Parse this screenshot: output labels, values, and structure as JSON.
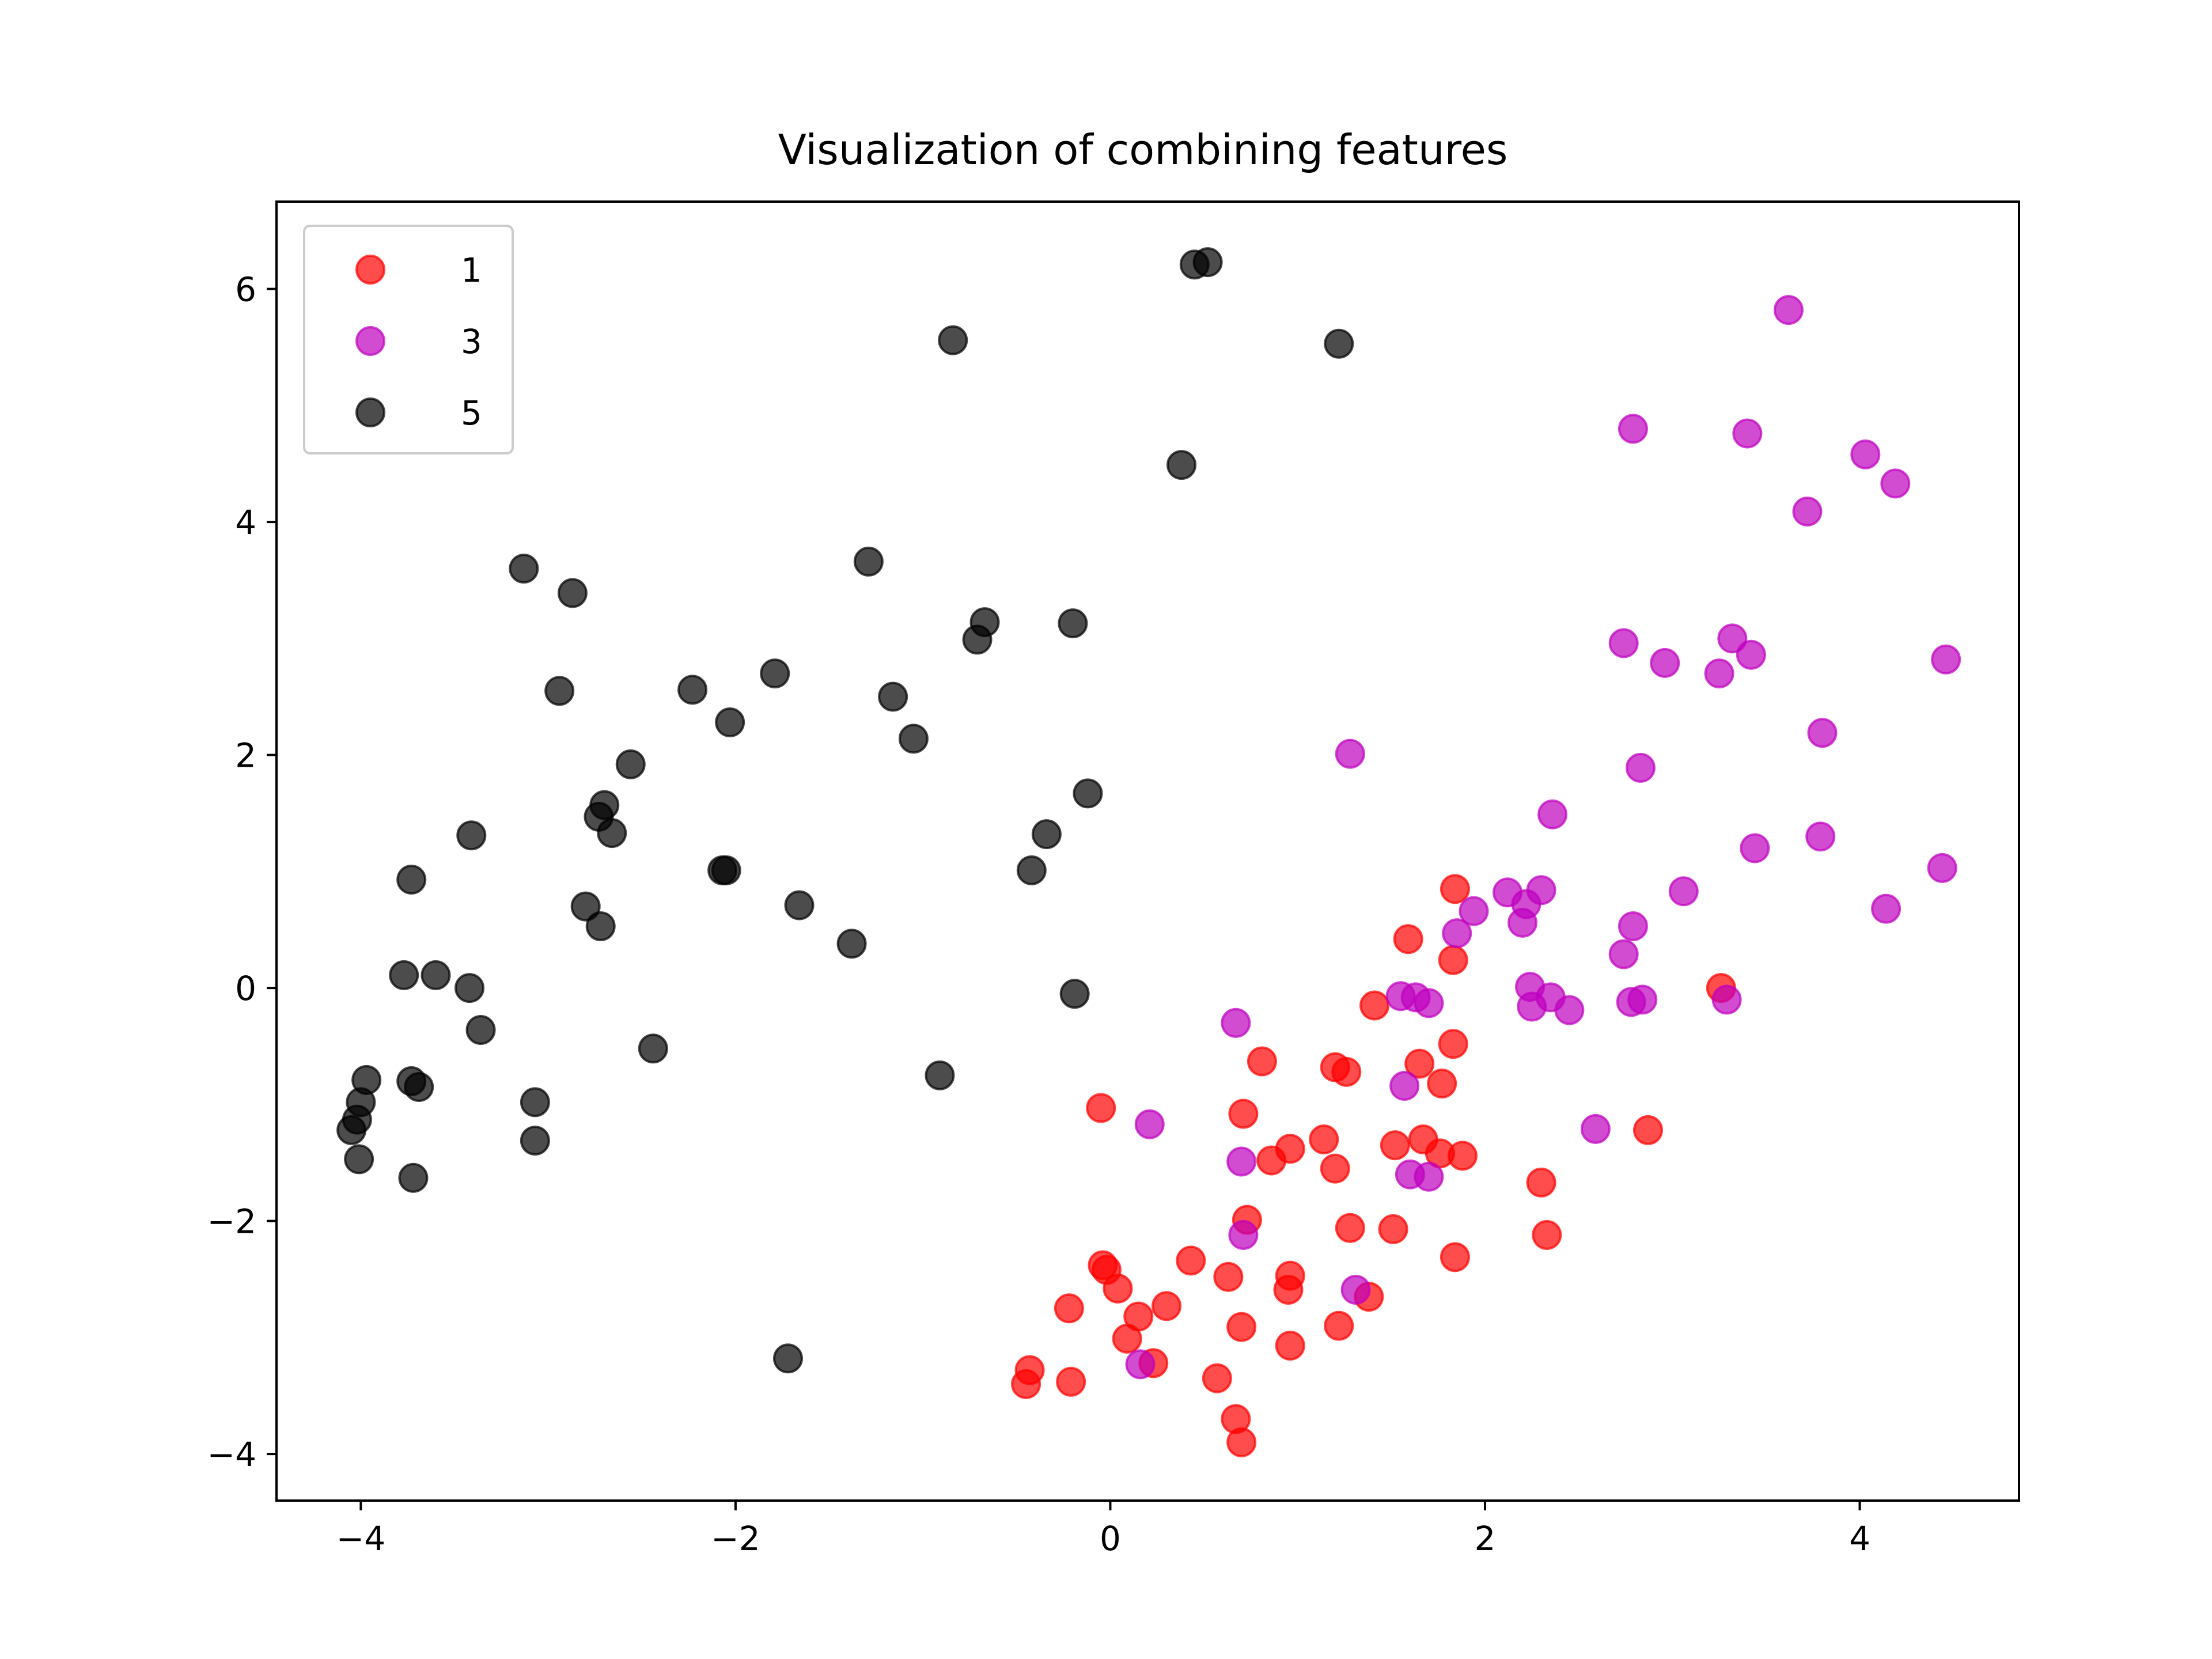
{
  "chart_data": {
    "type": "scatter",
    "title": "Visualization of combining features",
    "xlabel": "",
    "ylabel": "",
    "xlim": [
      -4.45,
      4.85
    ],
    "ylim": [
      -4.4,
      6.75
    ],
    "xticks": [
      -4,
      -2,
      0,
      2,
      4
    ],
    "yticks": [
      -4,
      -2,
      0,
      2,
      4,
      6
    ],
    "xtick_labels": [
      "−4",
      "−2",
      "0",
      "2",
      "4"
    ],
    "ytick_labels": [
      "−4",
      "−2",
      "0",
      "2",
      "4",
      "6"
    ],
    "grid": false,
    "legend_position": "top-left",
    "series": [
      {
        "name": "1",
        "color": "#ff0000",
        "points": [
          [
            1.84,
            0.85
          ],
          [
            1.59,
            0.42
          ],
          [
            1.83,
            0.24
          ],
          [
            3.26,
            0.0
          ],
          [
            1.41,
            -0.15
          ],
          [
            0.81,
            -0.63
          ],
          [
            1.2,
            -0.68
          ],
          [
            1.26,
            -0.72
          ],
          [
            1.65,
            -0.65
          ],
          [
            1.83,
            -0.48
          ],
          [
            1.77,
            -0.82
          ],
          [
            -0.05,
            -1.03
          ],
          [
            0.71,
            -1.08
          ],
          [
            0.86,
            -1.48
          ],
          [
            0.96,
            -1.38
          ],
          [
            1.14,
            -1.3
          ],
          [
            1.2,
            -1.55
          ],
          [
            1.52,
            -1.35
          ],
          [
            1.67,
            -1.3
          ],
          [
            1.76,
            -1.42
          ],
          [
            1.88,
            -1.44
          ],
          [
            2.87,
            -1.22
          ],
          [
            2.3,
            -1.67
          ],
          [
            0.73,
            -1.99
          ],
          [
            1.28,
            -2.06
          ],
          [
            1.51,
            -2.07
          ],
          [
            2.33,
            -2.12
          ],
          [
            1.84,
            -2.31
          ],
          [
            -0.04,
            -2.38
          ],
          [
            -0.02,
            -2.42
          ],
          [
            0.43,
            -2.34
          ],
          [
            0.63,
            -2.48
          ],
          [
            0.96,
            -2.47
          ],
          [
            0.95,
            -2.59
          ],
          [
            0.04,
            -2.58
          ],
          [
            -0.22,
            -2.75
          ],
          [
            0.3,
            -2.73
          ],
          [
            0.15,
            -2.82
          ],
          [
            1.38,
            -2.65
          ],
          [
            1.22,
            -2.9
          ],
          [
            0.7,
            -2.91
          ],
          [
            0.09,
            -3.01
          ],
          [
            0.96,
            -3.07
          ],
          [
            0.23,
            -3.22
          ],
          [
            -0.43,
            -3.28
          ],
          [
            -0.45,
            -3.4
          ],
          [
            -0.21,
            -3.38
          ],
          [
            0.57,
            -3.35
          ],
          [
            0.67,
            -3.7
          ],
          [
            0.7,
            -3.9
          ]
        ]
      },
      {
        "name": "3",
        "color": "#bf00bf",
        "points": [
          [
            3.62,
            5.82
          ],
          [
            2.79,
            4.8
          ],
          [
            3.4,
            4.76
          ],
          [
            4.03,
            4.58
          ],
          [
            4.19,
            4.33
          ],
          [
            3.72,
            4.09
          ],
          [
            2.74,
            2.96
          ],
          [
            3.32,
            3.0
          ],
          [
            3.42,
            2.86
          ],
          [
            2.96,
            2.79
          ],
          [
            3.25,
            2.7
          ],
          [
            4.46,
            2.82
          ],
          [
            3.8,
            2.19
          ],
          [
            1.28,
            2.01
          ],
          [
            2.83,
            1.89
          ],
          [
            2.36,
            1.49
          ],
          [
            3.79,
            1.3
          ],
          [
            3.44,
            1.2
          ],
          [
            4.44,
            1.03
          ],
          [
            4.14,
            0.68
          ],
          [
            3.06,
            0.83
          ],
          [
            2.12,
            0.82
          ],
          [
            2.3,
            0.84
          ],
          [
            2.22,
            0.72
          ],
          [
            1.94,
            0.66
          ],
          [
            2.2,
            0.56
          ],
          [
            2.79,
            0.53
          ],
          [
            1.85,
            0.47
          ],
          [
            2.74,
            0.29
          ],
          [
            2.24,
            0.01
          ],
          [
            2.35,
            -0.08
          ],
          [
            1.55,
            -0.07
          ],
          [
            1.63,
            -0.08
          ],
          [
            1.7,
            -0.13
          ],
          [
            2.78,
            -0.12
          ],
          [
            2.84,
            -0.1
          ],
          [
            3.29,
            -0.1
          ],
          [
            2.25,
            -0.16
          ],
          [
            2.45,
            -0.19
          ],
          [
            0.67,
            -0.3
          ],
          [
            1.57,
            -0.84
          ],
          [
            0.21,
            -1.17
          ],
          [
            2.59,
            -1.21
          ],
          [
            0.7,
            -1.49
          ],
          [
            1.6,
            -1.6
          ],
          [
            1.7,
            -1.62
          ],
          [
            0.71,
            -2.12
          ],
          [
            1.31,
            -2.59
          ],
          [
            0.16,
            -3.23
          ]
        ]
      },
      {
        "name": "5",
        "color": "#000000",
        "points": [
          [
            0.45,
            6.21
          ],
          [
            0.52,
            6.23
          ],
          [
            -0.84,
            5.56
          ],
          [
            1.22,
            5.53
          ],
          [
            0.38,
            4.49
          ],
          [
            -3.13,
            3.6
          ],
          [
            -2.87,
            3.39
          ],
          [
            -1.29,
            3.66
          ],
          [
            -0.67,
            3.14
          ],
          [
            -0.71,
            2.99
          ],
          [
            -0.2,
            3.13
          ],
          [
            -2.94,
            2.55
          ],
          [
            -2.23,
            2.56
          ],
          [
            -1.79,
            2.7
          ],
          [
            -1.16,
            2.5
          ],
          [
            -2.03,
            2.28
          ],
          [
            -1.05,
            2.14
          ],
          [
            -2.56,
            1.92
          ],
          [
            -0.12,
            1.67
          ],
          [
            -2.7,
            1.57
          ],
          [
            -2.73,
            1.47
          ],
          [
            -2.66,
            1.33
          ],
          [
            -3.41,
            1.31
          ],
          [
            -0.34,
            1.32
          ],
          [
            -2.07,
            1.01
          ],
          [
            -2.05,
            1.01
          ],
          [
            -0.42,
            1.01
          ],
          [
            -3.73,
            0.93
          ],
          [
            -2.8,
            0.7
          ],
          [
            -1.66,
            0.71
          ],
          [
            -2.72,
            0.53
          ],
          [
            -1.38,
            0.38
          ],
          [
            -3.77,
            0.11
          ],
          [
            -3.6,
            0.11
          ],
          [
            -3.42,
            0.0
          ],
          [
            -0.19,
            -0.05
          ],
          [
            -3.36,
            -0.36
          ],
          [
            -2.44,
            -0.52
          ],
          [
            -0.91,
            -0.75
          ],
          [
            -3.97,
            -0.79
          ],
          [
            -3.73,
            -0.8
          ],
          [
            -3.69,
            -0.85
          ],
          [
            -3.07,
            -0.98
          ],
          [
            -4.0,
            -0.98
          ],
          [
            -4.02,
            -1.13
          ],
          [
            -4.05,
            -1.22
          ],
          [
            -3.07,
            -1.31
          ],
          [
            -4.01,
            -1.47
          ],
          [
            -3.72,
            -1.63
          ],
          [
            -1.72,
            -3.18
          ]
        ]
      }
    ]
  }
}
